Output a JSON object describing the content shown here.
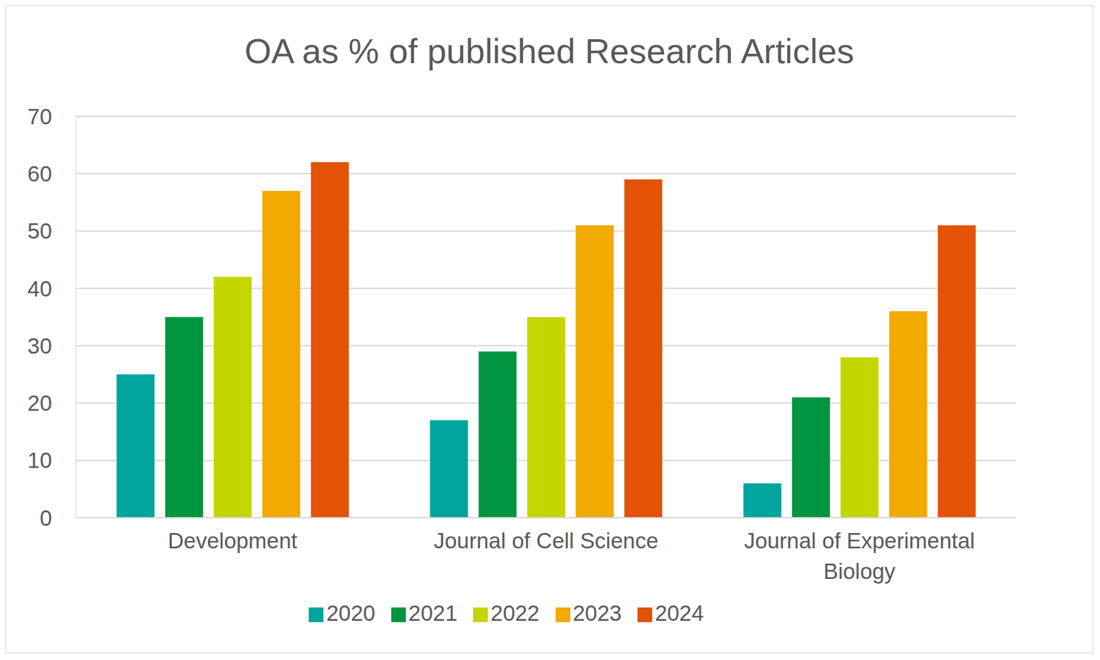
{
  "chart_data": {
    "type": "bar",
    "title": "OA as % of published Research Articles",
    "categories": [
      "Development",
      "Journal of Cell Science",
      "Journal of Experimental Biology"
    ],
    "series": [
      {
        "name": "2020",
        "color": "#00a59d",
        "values": [
          25,
          17,
          6
        ]
      },
      {
        "name": "2021",
        "color": "#00963f",
        "values": [
          35,
          29,
          21
        ]
      },
      {
        "name": "2022",
        "color": "#c4d600",
        "values": [
          42,
          35,
          28
        ]
      },
      {
        "name": "2023",
        "color": "#f2a900",
        "values": [
          57,
          51,
          36
        ]
      },
      {
        "name": "2024",
        "color": "#e35205",
        "values": [
          62,
          59,
          51
        ]
      }
    ],
    "ylim": [
      0,
      70
    ],
    "yticks": [
      0,
      10,
      20,
      30,
      40,
      50,
      60,
      70
    ],
    "grid": true,
    "legend": "bottom"
  }
}
